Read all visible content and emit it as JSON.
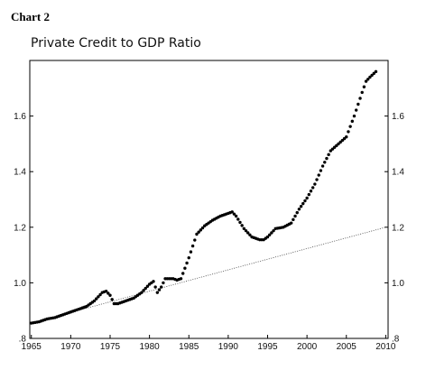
{
  "header": {
    "chart_number": "Chart 2"
  },
  "chart_data": {
    "type": "scatter",
    "title": "Private Credit to GDP Ratio",
    "xlim": [
      1964.8,
      2010.3
    ],
    "ylim": [
      0.8,
      1.8
    ],
    "x_ticks": [
      1965,
      1970,
      1975,
      1980,
      1985,
      1990,
      1995,
      2000,
      2005,
      2010
    ],
    "x_tick_labels": [
      "1965",
      "1970",
      "1975",
      "1980",
      "1985",
      "1990",
      "1995",
      "2000",
      "2005",
      "2010"
    ],
    "y_ticks": [
      0.8,
      1.0,
      1.2,
      1.4,
      1.6
    ],
    "y_tick_labels": [
      ".8",
      "1.0",
      "1.2",
      "1.4",
      "1.6"
    ],
    "series": [
      {
        "style": "dots",
        "x": [
          1965.0,
          1966.0,
          1967.0,
          1968.0,
          1969.0,
          1970.0,
          1971.0,
          1972.0,
          1973.0,
          1974.0,
          1974.5,
          1975.0,
          1975.5,
          1976.0,
          1977.0,
          1978.0,
          1979.0,
          1980.0,
          1980.5,
          1981.0,
          1981.5,
          1982.0,
          1983.0,
          1983.5,
          1984.0,
          1985.0,
          1986.0,
          1987.0,
          1988.0,
          1989.0,
          1990.0,
          1990.5,
          1991.0,
          1992.0,
          1993.0,
          1994.0,
          1994.5,
          1995.0,
          1996.0,
          1997.0,
          1998.0,
          1999.0,
          2000.0,
          2001.0,
          2002.0,
          2003.0,
          2004.0,
          2005.0,
          2006.0,
          2007.0,
          2007.5,
          2008.0,
          2008.75
        ],
        "y": [
          0.855,
          0.86,
          0.87,
          0.875,
          0.885,
          0.895,
          0.905,
          0.915,
          0.935,
          0.965,
          0.97,
          0.955,
          0.925,
          0.925,
          0.935,
          0.945,
          0.965,
          0.995,
          1.005,
          0.965,
          0.985,
          1.015,
          1.015,
          1.01,
          1.015,
          1.09,
          1.175,
          1.205,
          1.225,
          1.24,
          1.25,
          1.255,
          1.24,
          1.195,
          1.165,
          1.155,
          1.155,
          1.165,
          1.195,
          1.2,
          1.215,
          1.265,
          1.305,
          1.355,
          1.42,
          1.475,
          1.5,
          1.525,
          1.6,
          1.685,
          1.725,
          1.74,
          1.76
        ]
      },
      {
        "style": "dotted-line",
        "x": [
          1965.0,
          2010.0
        ],
        "y": [
          0.855,
          1.2
        ]
      }
    ]
  }
}
